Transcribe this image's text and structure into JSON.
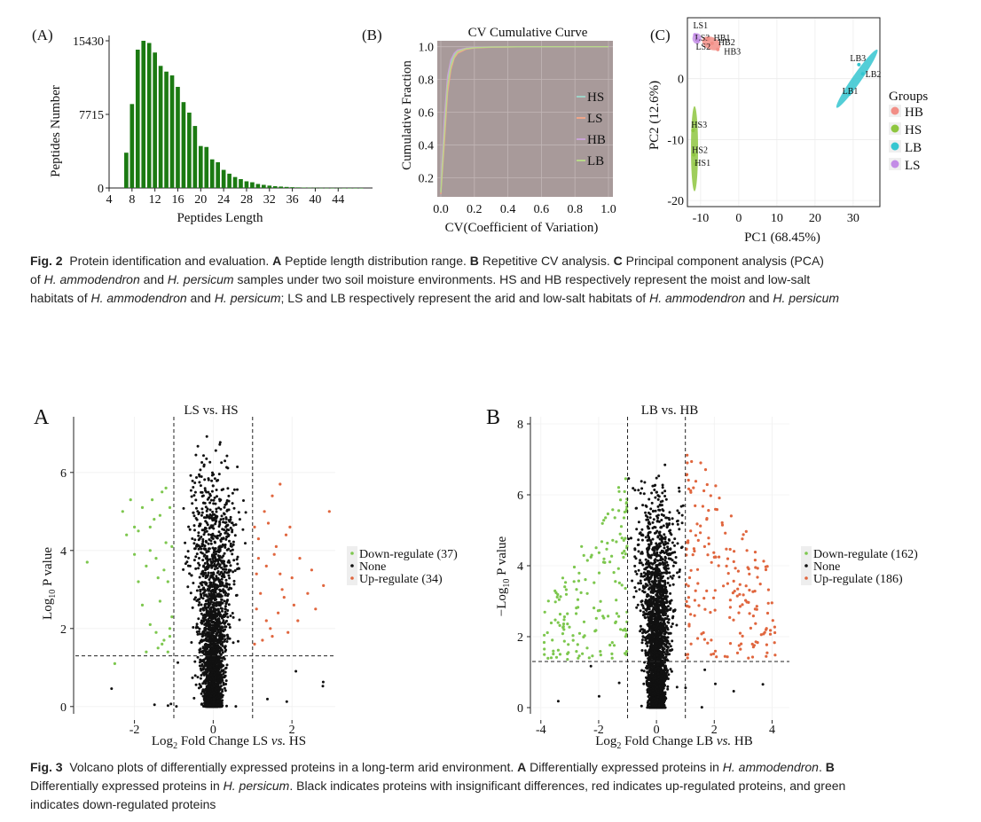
{
  "fig2": {
    "panelA": {
      "label": "(A)",
      "xlabel": "Peptides Length",
      "ylabel": "Peptides Number",
      "xticks": [
        "4",
        "8",
        "12",
        "16",
        "20",
        "24",
        "28",
        "32",
        "36",
        "40",
        "44"
      ],
      "yticks": [
        "0",
        "7715",
        "15430"
      ]
    },
    "panelB": {
      "label": "(B)",
      "title": "CV Cumulative Curve",
      "xlabel": "CV(Coefficient of Variation)",
      "ylabel": "Cumulative Fraction",
      "xticks": [
        "0.0",
        "0.2",
        "0.4",
        "0.6",
        "0.8",
        "1.0"
      ],
      "yticks": [
        "0.2",
        "0.4",
        "0.6",
        "0.8",
        "1.0"
      ],
      "legend": [
        "HS",
        "LS",
        "HB",
        "LB"
      ]
    },
    "panelC": {
      "label": "(C)",
      "xlabel": "PC1 (68.45%)",
      "ylabel": "PC2 (12.6%)",
      "xticks": [
        "-10",
        "0",
        "10",
        "20",
        "30"
      ],
      "yticks": [
        "0",
        "-10",
        "-20"
      ],
      "legend_title": "Groups",
      "legend": [
        "HB",
        "HS",
        "LB",
        "LS"
      ],
      "colors": {
        "HB": "#f28e86",
        "HS": "#8ec63f",
        "LB": "#35c6d0",
        "LS": "#c38ce6"
      },
      "point_labels": [
        "LS1",
        "LS3",
        "LS2",
        "HB1",
        "HB2",
        "HB3",
        "LB3",
        "LB2",
        "LB1",
        "HS3",
        "HS2",
        "HS1"
      ]
    },
    "caption": {
      "label": "Fig. 2",
      "text_lines": [
        "Protein identification and evaluation. A Peptide length distribution range. B Repetitive CV analysis. C Principal component analysis (PCA)",
        "of H. ammodendron and H. persicum samples under two soil moisture environments. HS and HB respectively represent the moist and low-salt",
        "habitats of H. ammodendron and H. persicum; LS and LB respectively represent the arid and low-salt habitats of H. ammodendron and H. persicum"
      ]
    }
  },
  "fig3": {
    "panelA": {
      "label": "A",
      "title": "LS vs. HS",
      "xlabel": "Log2 Fold Change LS vs. HS",
      "ylabel": "Log10 P value",
      "xticks": [
        "-2",
        "0",
        "2"
      ],
      "yticks": [
        "0",
        "2",
        "4",
        "6"
      ],
      "legend": [
        "Down-regulate (37)",
        "None",
        "Up-regulate (34)"
      ]
    },
    "panelB": {
      "label": "B",
      "title": "LB vs. HB",
      "xlabel": "Log2 Fold Change LB vs. HB",
      "ylabel": "−Log10 P value",
      "xticks": [
        "-4",
        "-2",
        "0",
        "2",
        "4"
      ],
      "yticks": [
        "0",
        "2",
        "4",
        "6",
        "8"
      ],
      "legend": [
        "Down-regulate (162)",
        "None",
        "Up-regulate (186)"
      ]
    },
    "colors": {
      "down": "#7dc74e",
      "none": "#111111",
      "up": "#e0663e"
    },
    "caption": {
      "label": "Fig. 3",
      "text_lines": [
        "Volcano plots of differentially expressed proteins in a long-term arid environment. A Differentially expressed proteins in H. ammodendron. B",
        "Differentially expressed proteins in H. persicum. Black indicates proteins with insignificant differences, red indicates up-regulated proteins, and green",
        "indicates down-regulated proteins"
      ]
    }
  },
  "chart_data": [
    {
      "id": "fig2A",
      "type": "bar",
      "title": "",
      "xlabel": "Peptides Length",
      "ylabel": "Peptides Number",
      "categories": [
        7,
        8,
        9,
        10,
        11,
        12,
        13,
        14,
        15,
        16,
        17,
        18,
        19,
        20,
        21,
        22,
        23,
        24,
        25,
        26,
        27,
        28,
        29,
        30,
        31,
        32,
        33,
        34,
        35,
        36,
        37,
        38,
        39,
        40,
        41,
        42,
        43,
        44,
        45,
        46,
        47,
        48
      ],
      "values": [
        3700,
        8800,
        14500,
        15430,
        15200,
        14200,
        12800,
        12200,
        11800,
        10600,
        9000,
        7900,
        6500,
        4400,
        4300,
        3000,
        2700,
        1900,
        1500,
        1150,
        930,
        700,
        600,
        420,
        330,
        250,
        190,
        150,
        110,
        80,
        60,
        45,
        35,
        25,
        18,
        12,
        9,
        6,
        4,
        3,
        2,
        1
      ],
      "ylim": [
        0,
        15430
      ],
      "xlim": [
        4,
        50
      ]
    },
    {
      "id": "fig2B",
      "type": "line",
      "title": "CV Cumulative Curve",
      "xlabel": "CV(Coefficient of Variation)",
      "ylabel": "Cumulative Fraction",
      "xlim": [
        0,
        1
      ],
      "ylim": [
        0.1,
        1.03
      ],
      "series": [
        {
          "name": "HS",
          "x": [
            0,
            0.02,
            0.04,
            0.06,
            0.08,
            0.1,
            0.15,
            0.2,
            0.3,
            0.5,
            1.0
          ],
          "y": [
            0.12,
            0.5,
            0.8,
            0.9,
            0.95,
            0.97,
            0.99,
            0.995,
            0.998,
            1.0,
            1.0
          ]
        },
        {
          "name": "LS",
          "x": [
            0,
            0.02,
            0.04,
            0.06,
            0.08,
            0.1,
            0.15,
            0.2,
            0.3,
            0.5,
            1.0
          ],
          "y": [
            0.1,
            0.4,
            0.72,
            0.86,
            0.93,
            0.96,
            0.985,
            0.993,
            0.997,
            1.0,
            1.0
          ]
        },
        {
          "name": "HB",
          "x": [
            0,
            0.02,
            0.04,
            0.06,
            0.08,
            0.1,
            0.15,
            0.2,
            0.3,
            0.5,
            1.0
          ],
          "y": [
            0.13,
            0.55,
            0.82,
            0.92,
            0.96,
            0.98,
            0.99,
            0.996,
            0.999,
            1.0,
            1.0
          ]
        },
        {
          "name": "LB",
          "x": [
            0,
            0.02,
            0.04,
            0.06,
            0.08,
            0.1,
            0.15,
            0.2,
            0.3,
            0.5,
            1.0
          ],
          "y": [
            0.11,
            0.45,
            0.76,
            0.88,
            0.94,
            0.97,
            0.988,
            0.994,
            0.998,
            1.0,
            1.0
          ]
        }
      ],
      "legend": [
        "HS",
        "LS",
        "HB",
        "LB"
      ]
    },
    {
      "id": "fig2C",
      "type": "scatter",
      "xlabel": "PC1 (68.45%)",
      "ylabel": "PC2 (12.6%)",
      "xlim": [
        -13,
        37
      ],
      "ylim": [
        -21,
        10
      ],
      "series": [
        {
          "name": "LS",
          "points": [
            {
              "label": "LS1",
              "x": -11.5,
              "y": 7.2
            },
            {
              "label": "LS3",
              "x": -11.0,
              "y": 6.5
            },
            {
              "label": "LS2",
              "x": -10.8,
              "y": 6.2
            }
          ]
        },
        {
          "name": "HB",
          "points": [
            {
              "label": "HB1",
              "x": -8.0,
              "y": 6.5
            },
            {
              "label": "HB2",
              "x": -7.0,
              "y": 5.8
            },
            {
              "label": "HB3",
              "x": -5.5,
              "y": 4.8
            }
          ]
        },
        {
          "name": "LB",
          "points": [
            {
              "label": "LB3",
              "x": 31.5,
              "y": 2.3
            },
            {
              "label": "LB2",
              "x": 32.5,
              "y": 0.8
            },
            {
              "label": "LB1",
              "x": 29.0,
              "y": -2.5
            }
          ]
        },
        {
          "name": "HS",
          "points": [
            {
              "label": "HS3",
              "x": -12.0,
              "y": -8.5
            },
            {
              "label": "HS2",
              "x": -11.8,
              "y": -12.5
            },
            {
              "label": "HS1",
              "x": -11.3,
              "y": -14.0
            }
          ]
        }
      ]
    },
    {
      "id": "fig3A",
      "type": "scatter",
      "title": "LS vs. HS",
      "xlabel": "Log2 Fold Change LS vs. HS",
      "ylabel": "Log10 P value",
      "xlim": [
        -3.5,
        3.1
      ],
      "ylim": [
        -0.3,
        7.2
      ],
      "fc_threshold": 1,
      "p_threshold": 1.3,
      "none_cloud": {
        "count": 2600,
        "xsd": 0.38,
        "ymax": 7.0
      },
      "down": [
        [
          -3.2,
          3.7
        ],
        [
          -2.5,
          1.1
        ],
        [
          -2.1,
          5.3
        ],
        [
          -2.0,
          4.6
        ],
        [
          -1.9,
          4.5
        ],
        [
          -1.8,
          5.1
        ],
        [
          -1.7,
          3.6
        ],
        [
          -1.6,
          4.0
        ],
        [
          -1.5,
          4.8
        ],
        [
          -1.4,
          1.5
        ],
        [
          -1.3,
          5.5
        ],
        [
          -1.2,
          4.2
        ],
        [
          -1.15,
          3.2
        ],
        [
          -1.1,
          1.8
        ],
        [
          -1.05,
          2.3
        ],
        [
          -1.3,
          1.6
        ],
        [
          -1.6,
          2.1
        ],
        [
          -1.9,
          3.2
        ],
        [
          -1.35,
          4.9
        ],
        [
          -1.2,
          5.6
        ],
        [
          -1.45,
          3.8
        ],
        [
          -1.7,
          1.4
        ],
        [
          -2.2,
          4.4
        ],
        [
          -1.25,
          1.7
        ],
        [
          -1.1,
          2.0
        ],
        [
          -1.05,
          4.1
        ],
        [
          -1.4,
          3.3
        ],
        [
          -1.8,
          2.6
        ],
        [
          -2.3,
          5.0
        ],
        [
          -1.55,
          5.3
        ],
        [
          -1.15,
          1.4
        ],
        [
          -1.25,
          3.5
        ],
        [
          -1.6,
          4.6
        ],
        [
          -1.35,
          2.7
        ],
        [
          -1.1,
          5.1
        ],
        [
          -2.0,
          3.9
        ],
        [
          -1.45,
          1.9
        ]
      ],
      "up": [
        [
          1.05,
          1.6
        ],
        [
          1.1,
          3.4
        ],
        [
          1.15,
          4.3
        ],
        [
          1.2,
          2.9
        ],
        [
          1.3,
          5.0
        ],
        [
          1.35,
          3.6
        ],
        [
          1.4,
          4.7
        ],
        [
          1.45,
          2.0
        ],
        [
          1.5,
          5.4
        ],
        [
          1.55,
          3.9
        ],
        [
          1.6,
          4.1
        ],
        [
          1.65,
          2.4
        ],
        [
          1.7,
          5.7
        ],
        [
          1.75,
          3.0
        ],
        [
          1.8,
          2.8
        ],
        [
          1.85,
          4.4
        ],
        [
          1.9,
          1.9
        ],
        [
          2.0,
          3.3
        ],
        [
          2.05,
          2.6
        ],
        [
          2.2,
          3.8
        ],
        [
          2.4,
          2.9
        ],
        [
          2.6,
          2.5
        ],
        [
          2.8,
          3.1
        ],
        [
          2.95,
          5.0
        ],
        [
          1.25,
          1.7
        ],
        [
          1.15,
          3.8
        ],
        [
          1.35,
          2.2
        ],
        [
          1.05,
          4.6
        ],
        [
          1.5,
          1.8
        ],
        [
          1.95,
          4.6
        ],
        [
          2.15,
          2.2
        ],
        [
          1.1,
          2.5
        ],
        [
          1.7,
          3.4
        ],
        [
          2.5,
          3.5
        ]
      ],
      "legend": [
        "Down-regulate (37)",
        "None",
        "Up-regulate (34)"
      ]
    },
    {
      "id": "fig3B",
      "type": "scatter",
      "title": "LB vs. HB",
      "xlabel": "Log2 Fold Change LB vs. HB",
      "ylabel": "−Log10 P value",
      "xlim": [
        -4.3,
        4.6
      ],
      "ylim": [
        -0.3,
        8.2
      ],
      "fc_threshold": 1,
      "p_threshold": 1.3,
      "none_cloud": {
        "count": 3200,
        "xsd": 0.42,
        "ymax": 6.9
      },
      "down_count": 162,
      "up_count": 186,
      "legend": [
        "Down-regulate (162)",
        "None",
        "Up-regulate (186)"
      ]
    }
  ]
}
